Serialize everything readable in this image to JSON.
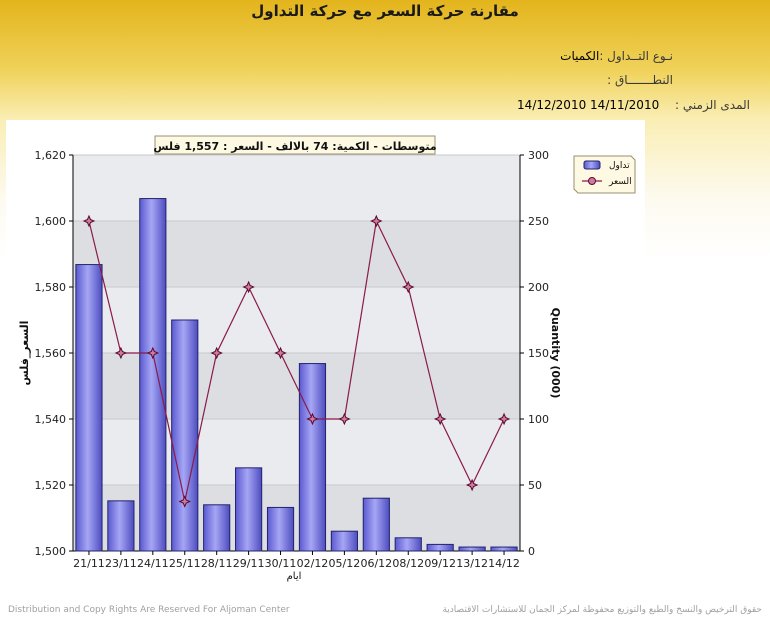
{
  "page": {
    "title": "مقارنة حركة السعر مع حركة التداول",
    "trade_type_label": "نـوع التــداول :",
    "trade_type_value": "الكميات",
    "scope_label": "النطـــــــاق :",
    "period_label": "المدى الزمني :",
    "period_from": "14/11/2010",
    "period_to": "14/12/2010",
    "footer_left": "Distribution and Copy Rights Are Reserved For Aljoman Center",
    "footer_right": "حقوق الترخيص والنسخ والطبع والتوزيع محفوظة لمركز الجمان للاستشارات الاقتصادية"
  },
  "chart_data": {
    "type": "bar+line",
    "header": "متوسطات - الكمية: 74 بالالف  -  السعر : 1,557 فلس",
    "categories": [
      "21/11",
      "23/11",
      "24/11",
      "25/11",
      "28/11",
      "29/11",
      "30/11",
      "02/12",
      "05/12",
      "06/12",
      "08/12",
      "09/12",
      "13/12",
      "14/12"
    ],
    "xlabel": "ايام",
    "ylabel_left": "السعر_فلس",
    "ylabel_right": "Quantity (000)",
    "ylim_left": [
      1500,
      1620
    ],
    "yticks_left": [
      "1,500",
      "1,520",
      "1,540",
      "1,560",
      "1,580",
      "1,600",
      "1,620"
    ],
    "ylim_right": [
      0,
      300
    ],
    "yticks_right": [
      "0",
      "50",
      "100",
      "150",
      "200",
      "250",
      "300"
    ],
    "series": [
      {
        "name": "تداول",
        "axis": "right",
        "type": "bar",
        "color": "#7b7be0",
        "values": [
          217,
          38,
          267,
          175,
          35,
          63,
          33,
          142,
          15,
          40,
          10,
          5,
          3,
          3
        ]
      },
      {
        "name": "السعر",
        "axis": "left",
        "type": "line",
        "color": "#8b1a4a",
        "values": [
          1600,
          1560,
          1560,
          1515,
          1560,
          1580,
          1560,
          1540,
          1540,
          1600,
          1580,
          1540,
          1520,
          1540
        ]
      }
    ],
    "legend_position": "top-right",
    "grid": true
  }
}
